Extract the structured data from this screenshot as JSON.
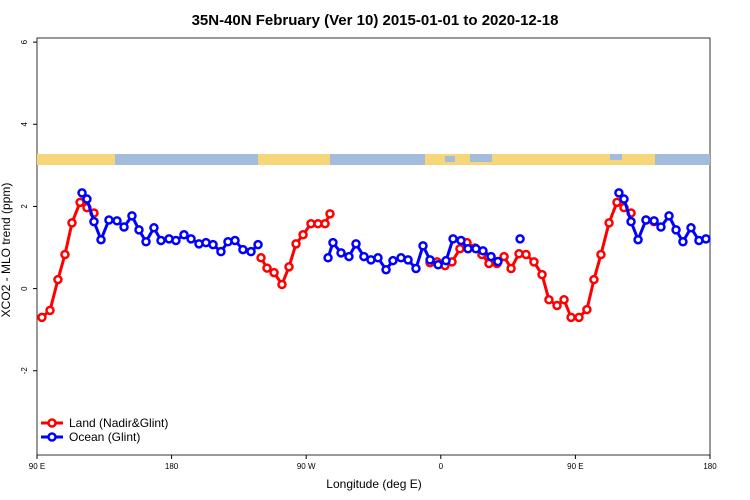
{
  "chart_data": {
    "type": "line",
    "title": "35N-40N February (Ver 10)   2015-01-01 to 2020-12-18",
    "x_label": "Longitude (deg E)",
    "y_label": "XCO2 - MLO trend (ppm)",
    "xlim": [
      90,
      540
    ],
    "xticks": [
      {
        "value": 90,
        "label": "90 E"
      },
      {
        "value": 180,
        "label": "180"
      },
      {
        "value": 270,
        "label": "90 W"
      },
      {
        "value": 360,
        "label": "0"
      },
      {
        "value": 450,
        "label": "90 E"
      },
      {
        "value": 540,
        "label": "180"
      }
    ],
    "ylim": [
      -4.05,
      6.1
    ],
    "yticks": [
      -2,
      0,
      2,
      4,
      6
    ],
    "legend": "bottom-left",
    "series": [
      {
        "name": "Land (Nadir&Glint)",
        "color": "#ff0000",
        "x": [
          93.3,
          98.7,
          104,
          108.7,
          113.4,
          118.8,
          123.4,
          128.1,
          184,
          239.8,
          243.8,
          248.5,
          253.8,
          258.5,
          263.2,
          267.9,
          273.2,
          277.9,
          282.6,
          285.9,
          320,
          352.8,
          357.5,
          362.8,
          367.5,
          372.8,
          377.5,
          382.9,
          387.5,
          392.2,
          397.6,
          402.3,
          407,
          412.3,
          417,
          422.3,
          427.7,
          432.3,
          437.7,
          442.4,
          447.1,
          452.4,
          457.7,
          462.4,
          467.1,
          472.5,
          477.8,
          482.5,
          487.2,
          492,
          497.2,
          502.6
        ],
        "values": [
          -0.7,
          -0.53,
          0.22,
          0.83,
          1.6,
          2.1,
          1.97,
          1.84,
          null,
          0.75,
          0.5,
          0.39,
          0.1,
          0.53,
          1.09,
          1.31,
          1.58,
          1.58,
          1.58,
          1.82,
          null,
          0.63,
          0.65,
          0.56,
          0.65,
          0.97,
          1.12,
          0.99,
          0.83,
          0.61,
          0.61,
          0.78,
          0.49,
          0.85,
          0.83,
          0.65,
          0.34,
          -0.27,
          -0.41,
          -0.27,
          -0.7,
          -0.7,
          -0.51,
          0.22,
          0.83,
          1.6,
          2.1,
          1.97,
          1.84,
          null,
          1.67,
          1.63
        ]
      },
      {
        "name": "Ocean (Glint)",
        "color": "#0000ff",
        "x": [
          120.1,
          123.4,
          128.1,
          132.8,
          138.1,
          143.5,
          148.2,
          153.5,
          158.2,
          162.9,
          168.2,
          172.9,
          178.3,
          182.9,
          188.3,
          193,
          198.3,
          203,
          207.7,
          213,
          217.7,
          222.4,
          227.7,
          233.1,
          237.8,
          260,
          284.6,
          287.9,
          293.3,
          298.6,
          303.3,
          308.6,
          313.3,
          318,
          323.4,
          328,
          333.4,
          338.1,
          343.4,
          348.1,
          352.8,
          358.2,
          363.5,
          368.2,
          373.5,
          378.2,
          383.5,
          388.2,
          393.6,
          398.2,
          405,
          413,
          440,
          479.1,
          482.5,
          487.2,
          491.9,
          497.2,
          502.6,
          507.2,
          512.6,
          517.3,
          521.9,
          527.3,
          532.6,
          537.3
        ],
        "values": [
          2.33,
          2.18,
          1.63,
          1.19,
          1.67,
          1.65,
          1.5,
          1.77,
          1.43,
          1.14,
          1.48,
          1.17,
          1.21,
          1.17,
          1.31,
          1.21,
          1.09,
          1.12,
          1.07,
          0.9,
          1.14,
          1.17,
          0.95,
          0.9,
          1.07,
          null,
          0.75,
          1.12,
          0.87,
          0.78,
          1.09,
          0.78,
          0.7,
          0.75,
          0.46,
          0.68,
          0.75,
          0.7,
          0.49,
          1.04,
          0.7,
          0.58,
          0.68,
          1.21,
          1.17,
          0.97,
          0.97,
          0.92,
          0.78,
          0.66,
          null,
          1.21,
          null,
          2.33,
          2.18,
          1.63,
          1.19,
          1.67,
          1.65,
          1.5,
          1.77,
          1.43,
          1.14,
          1.48,
          1.17,
          1.21
        ]
      }
    ]
  }
}
